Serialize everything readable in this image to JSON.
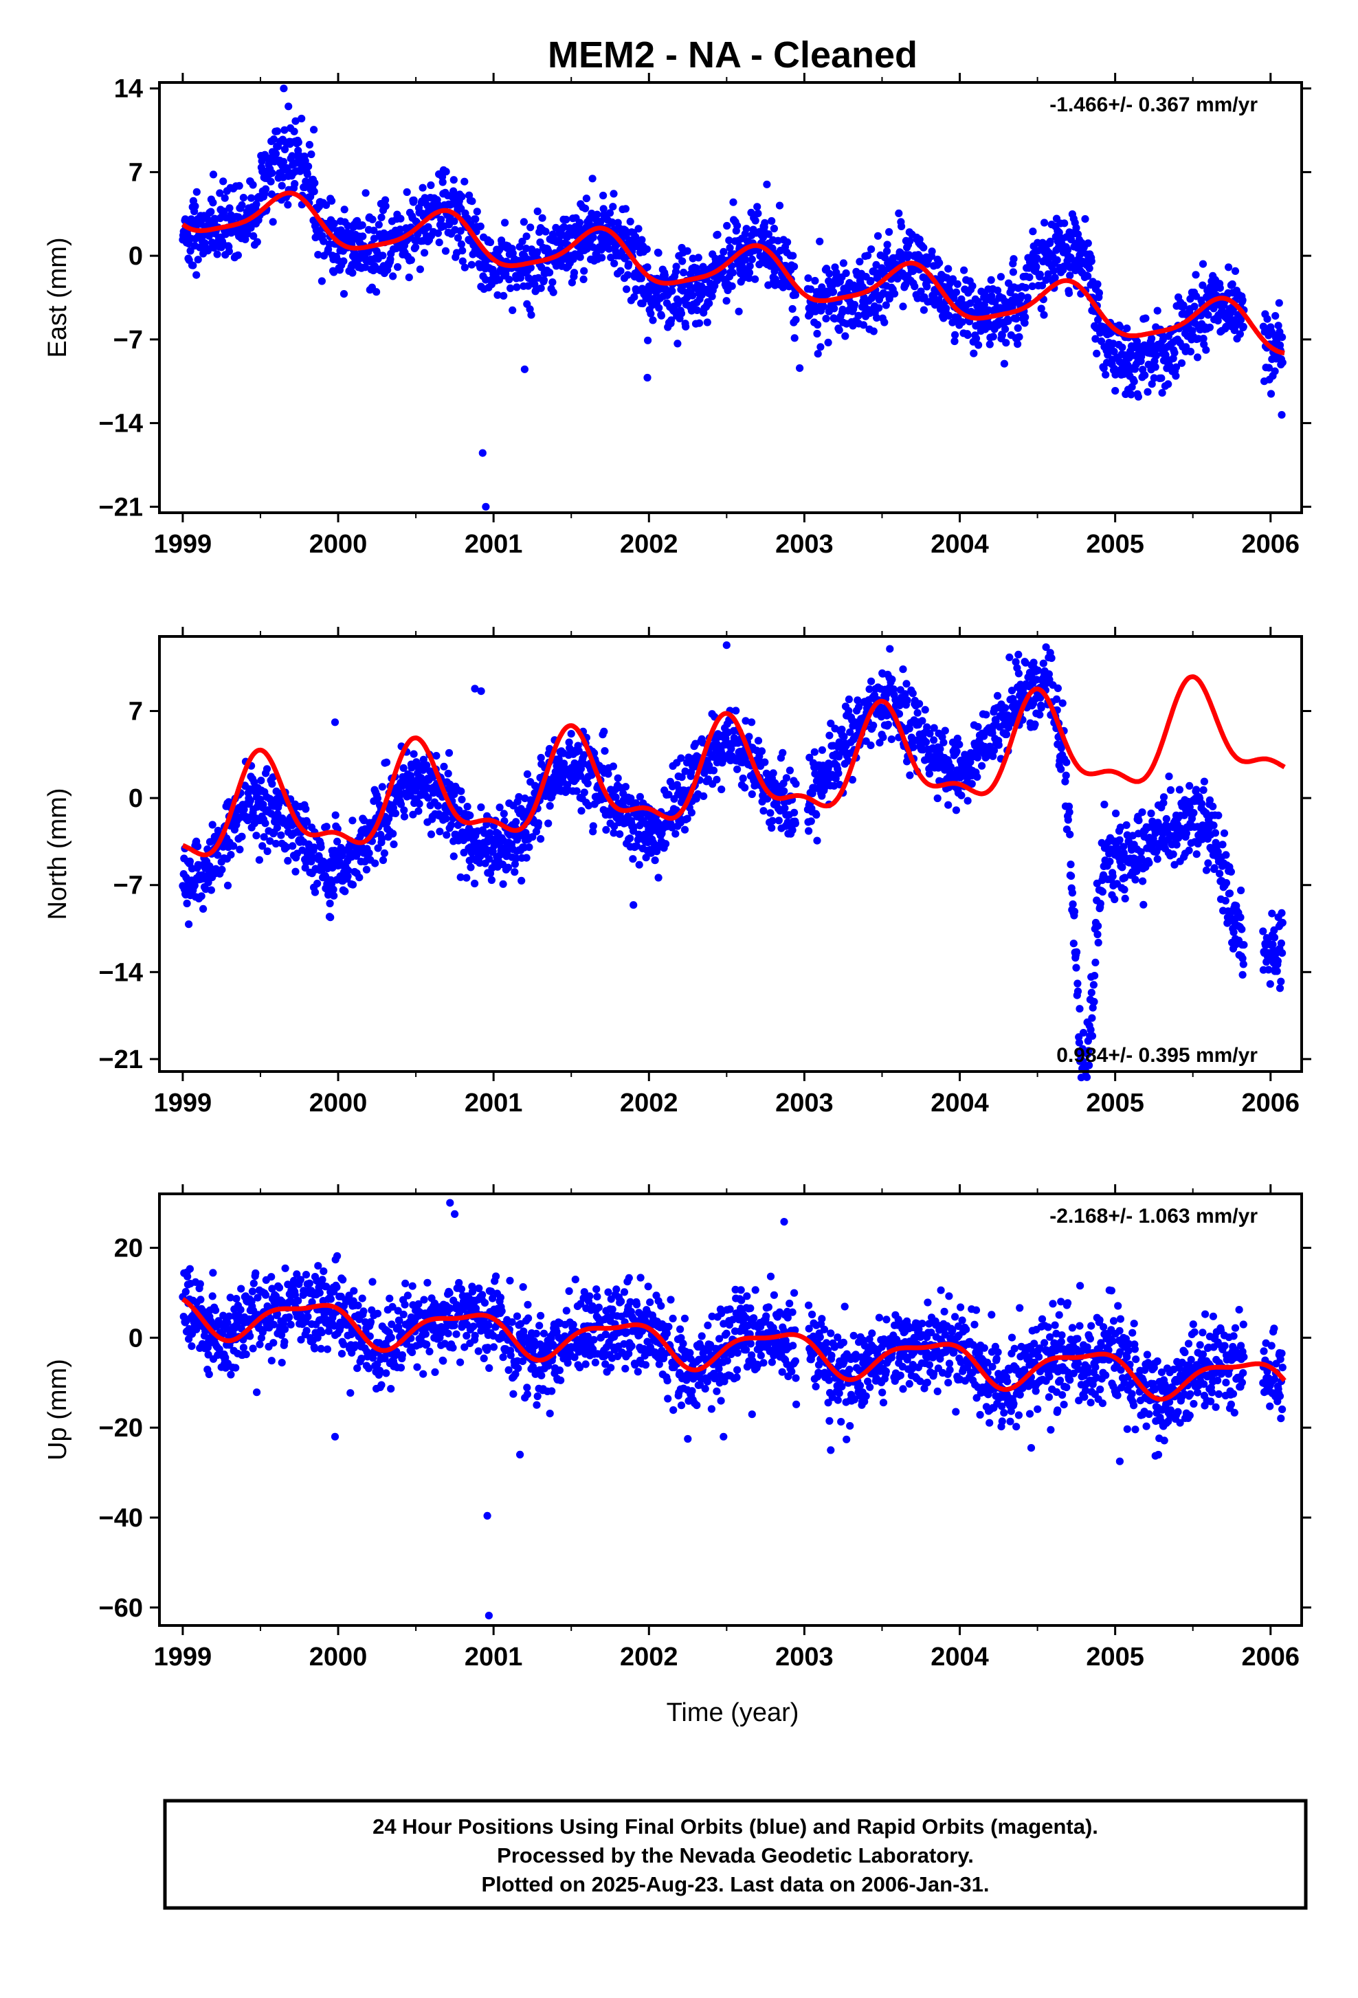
{
  "title": "MEM2  - NA - Cleaned",
  "chart_data": [
    {
      "type": "scatter",
      "id": "east",
      "ylabel": "East (mm)",
      "xlabel": "",
      "xlim": [
        1998.85,
        2006.2
      ],
      "ylim": [
        -21.5,
        14.5
      ],
      "yticks": [
        14,
        7,
        0,
        -7,
        -14,
        -21
      ],
      "xticks": [
        1999,
        2000,
        2001,
        2002,
        2003,
        2004,
        2005,
        2006
      ],
      "rate_label": "-1.466+/- 0.367 mm/yr",
      "rate_position": "top-right",
      "series": [
        {
          "type": "scatter",
          "color": "#0000ff",
          "x": [],
          "y": []
        },
        {
          "type": "line",
          "color": "#ff0000",
          "x": [],
          "y": []
        }
      ]
    },
    {
      "type": "scatter",
      "id": "north",
      "ylabel": "North (mm)",
      "xlabel": "",
      "xlim": [
        1998.85,
        2006.2
      ],
      "ylim": [
        -22,
        13
      ],
      "yticks": [
        7,
        0,
        -7,
        -14,
        -21
      ],
      "xticks": [
        1999,
        2000,
        2001,
        2002,
        2003,
        2004,
        2005,
        2006
      ],
      "rate_label": "0.984+/- 0.395 mm/yr",
      "rate_position": "bottom-right",
      "series": [
        {
          "type": "scatter",
          "color": "#0000ff",
          "x": [],
          "y": []
        },
        {
          "type": "line",
          "color": "#ff0000",
          "x": [],
          "y": []
        }
      ]
    },
    {
      "type": "scatter",
      "id": "up",
      "ylabel": "Up (mm)",
      "xlabel": "Time (year)",
      "xlim": [
        1998.85,
        2006.2
      ],
      "ylim": [
        -64,
        32
      ],
      "yticks": [
        20,
        0,
        -20,
        -40,
        -60
      ],
      "xticks": [
        1999,
        2000,
        2001,
        2002,
        2003,
        2004,
        2005,
        2006
      ],
      "rate_label": "-2.168+/- 1.063 mm/yr",
      "rate_position": "top-right",
      "series": [
        {
          "type": "scatter",
          "color": "#0000ff",
          "x": [],
          "y": []
        },
        {
          "type": "line",
          "color": "#ff0000",
          "x": [],
          "y": []
        }
      ]
    }
  ],
  "footer": {
    "line1": "24 Hour Positions Using Final Orbits (blue) and Rapid Orbits (magenta).",
    "line2": "Processed by the Nevada Geodetic Laboratory.",
    "line3": "Plotted on 2025-Aug-23. Last data on 2006-Jan-31."
  }
}
